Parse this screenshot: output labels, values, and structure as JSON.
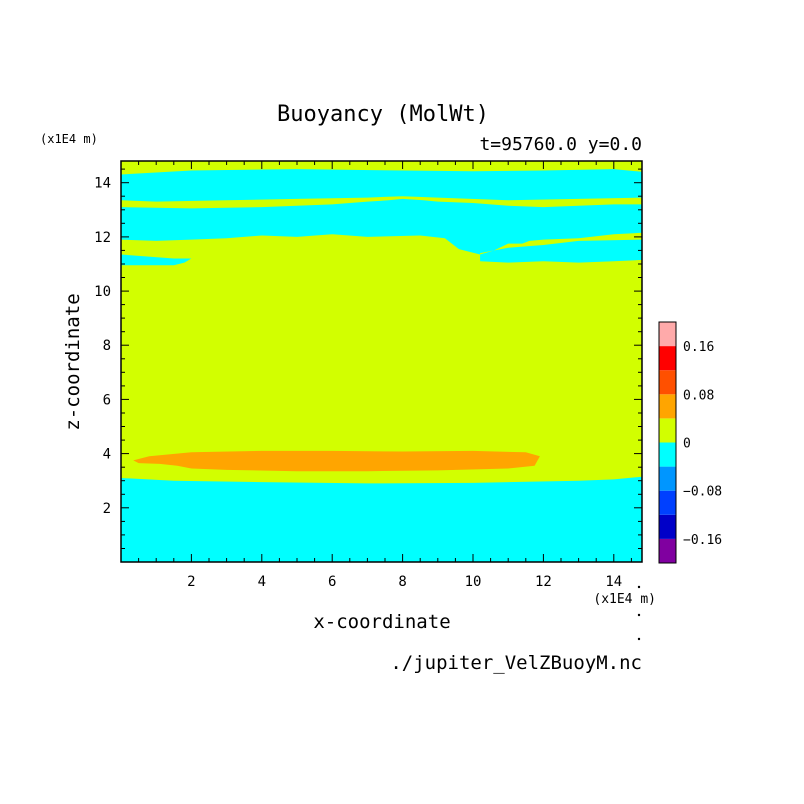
{
  "chart_data": {
    "type": "heatmap",
    "title": "Buoyancy (MolWt)",
    "subtitle": "t=95760.0 y=0.0",
    "xlabel": "x-coordinate",
    "ylabel": "z-coordinate",
    "x_unit": "(x1E4 m)",
    "y_unit": "(x1E4 m)",
    "xlim": [
      0,
      14.8
    ],
    "ylim": [
      0,
      14.8
    ],
    "x_ticks": [
      2,
      4,
      6,
      8,
      10,
      12,
      14
    ],
    "y_ticks": [
      2,
      4,
      6,
      8,
      10,
      12,
      14
    ],
    "grid": false,
    "source_label": "./jupiter_VelZBuoyM.nc",
    "colorbar": {
      "levels": [
        -0.2,
        -0.16,
        -0.12,
        -0.08,
        -0.04,
        0,
        0.04,
        0.08,
        0.12,
        0.16,
        0.2
      ],
      "colors": [
        "#8000a0",
        "#0000c8",
        "#0040ff",
        "#0096ff",
        "#00ffff",
        "#d2ff00",
        "#ffa500",
        "#ff5000",
        "#ff0000",
        "#ffaaaa"
      ],
      "tick_labels": [
        {
          "value": 0.16,
          "label": "0.16"
        },
        {
          "value": 0.08,
          "label": "0.08"
        },
        {
          "value": 0,
          "label": "0"
        },
        {
          "value": -0.08,
          "label": "−0.08"
        },
        {
          "value": -0.16,
          "label": "−0.16"
        }
      ]
    },
    "regions": [
      {
        "name": "background-negative",
        "value_range": [
          -0.04,
          0
        ],
        "color": "#00ffff",
        "outline": [
          [
            0,
            0
          ],
          [
            14.8,
            0
          ],
          [
            14.8,
            14.8
          ],
          [
            0,
            14.8
          ]
        ]
      },
      {
        "name": "neutral-main",
        "value_range": [
          0,
          0.04
        ],
        "color": "#d2ff00",
        "outline": [
          [
            0,
            3.1
          ],
          [
            1.5,
            3.0
          ],
          [
            4,
            2.95
          ],
          [
            7,
            2.9
          ],
          [
            10,
            2.92
          ],
          [
            13,
            3.0
          ],
          [
            14,
            3.05
          ],
          [
            14.8,
            3.15
          ],
          [
            14.8,
            11.15
          ],
          [
            14,
            11.1
          ],
          [
            13,
            11.05
          ],
          [
            12,
            11.1
          ],
          [
            11,
            11.05
          ],
          [
            10.2,
            11.1
          ],
          [
            10.2,
            11.4
          ],
          [
            11,
            11.6
          ],
          [
            12,
            11.7
          ],
          [
            13,
            11.85
          ],
          [
            14.8,
            11.9
          ],
          [
            14.8,
            12.15
          ],
          [
            14,
            12.1
          ],
          [
            13,
            11.95
          ],
          [
            12,
            11.9
          ],
          [
            11.6,
            11.85
          ],
          [
            11.4,
            11.75
          ],
          [
            11,
            11.75
          ],
          [
            10.6,
            11.5
          ],
          [
            10.2,
            11.35
          ],
          [
            9.6,
            11.55
          ],
          [
            9.2,
            11.95
          ],
          [
            8.5,
            12.05
          ],
          [
            7,
            12.0
          ],
          [
            6,
            12.1
          ],
          [
            5,
            12.0
          ],
          [
            4,
            12.05
          ],
          [
            3,
            11.95
          ],
          [
            2,
            11.9
          ],
          [
            1,
            11.85
          ],
          [
            0,
            11.9
          ],
          [
            0,
            11.35
          ],
          [
            1.5,
            11.2
          ],
          [
            2,
            11.2
          ],
          [
            1.8,
            11.05
          ],
          [
            1.5,
            10.95
          ],
          [
            0,
            10.95
          ]
        ]
      },
      {
        "name": "neutral-upper-band",
        "value_range": [
          0,
          0.04
        ],
        "color": "#d2ff00",
        "outline": [
          [
            0,
            13.1
          ],
          [
            2,
            13.05
          ],
          [
            4,
            13.1
          ],
          [
            6,
            13.2
          ],
          [
            7,
            13.3
          ],
          [
            7.6,
            13.35
          ],
          [
            8,
            13.4
          ],
          [
            8.6,
            13.35
          ],
          [
            9,
            13.3
          ],
          [
            10,
            13.25
          ],
          [
            11,
            13.15
          ],
          [
            12,
            13.1
          ],
          [
            13,
            13.15
          ],
          [
            14,
            13.2
          ],
          [
            14.8,
            13.2
          ],
          [
            14.8,
            13.45
          ],
          [
            13,
            13.4
          ],
          [
            11,
            13.35
          ],
          [
            9,
            13.45
          ],
          [
            8,
            13.5
          ],
          [
            7,
            13.45
          ],
          [
            5,
            13.4
          ],
          [
            3,
            13.35
          ],
          [
            1,
            13.3
          ],
          [
            0,
            13.35
          ]
        ]
      },
      {
        "name": "neutral-top-strip",
        "value_range": [
          0,
          0.04
        ],
        "color": "#d2ff00",
        "outline": [
          [
            0,
            14.3
          ],
          [
            2,
            14.45
          ],
          [
            5,
            14.5
          ],
          [
            8,
            14.45
          ],
          [
            10,
            14.42
          ],
          [
            12,
            14.45
          ],
          [
            14,
            14.5
          ],
          [
            14.8,
            14.4
          ],
          [
            14.8,
            14.8
          ],
          [
            0,
            14.8
          ]
        ]
      },
      {
        "name": "positive-lens",
        "value_range": [
          0.04,
          0.08
        ],
        "color": "#ffa500",
        "outline": [
          [
            0.35,
            3.75
          ],
          [
            0.8,
            3.9
          ],
          [
            2,
            4.05
          ],
          [
            4,
            4.1
          ],
          [
            6,
            4.1
          ],
          [
            8,
            4.08
          ],
          [
            10,
            4.1
          ],
          [
            11.5,
            4.05
          ],
          [
            11.9,
            3.9
          ],
          [
            11.75,
            3.55
          ],
          [
            11,
            3.45
          ],
          [
            9,
            3.38
          ],
          [
            7,
            3.35
          ],
          [
            5,
            3.35
          ],
          [
            3,
            3.4
          ],
          [
            2,
            3.45
          ],
          [
            1.6,
            3.55
          ],
          [
            1.1,
            3.62
          ],
          [
            0.5,
            3.65
          ]
        ]
      }
    ]
  }
}
